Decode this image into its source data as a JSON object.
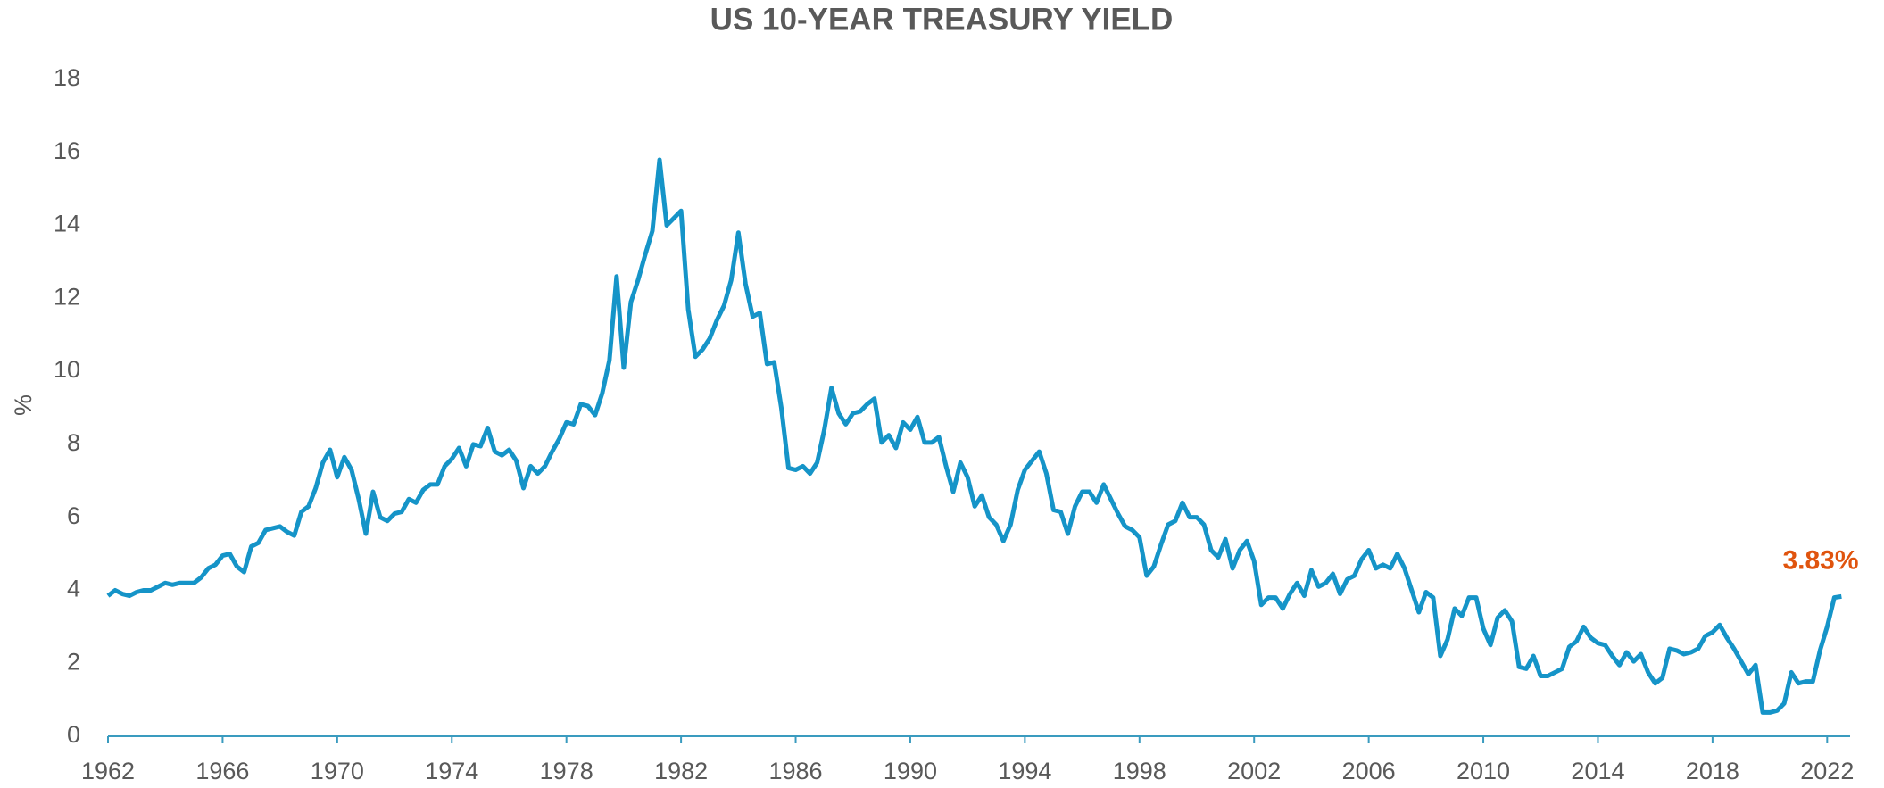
{
  "chart_data": {
    "type": "line",
    "title": "US 10-YEAR TREASURY YIELD",
    "y_label": "%",
    "x": [
      1962,
      1962.25,
      1962.5,
      1962.75,
      1963,
      1963.25,
      1963.5,
      1963.75,
      1964,
      1964.25,
      1964.5,
      1964.75,
      1965,
      1965.25,
      1965.5,
      1965.75,
      1966,
      1966.25,
      1966.5,
      1966.75,
      1967,
      1967.25,
      1967.5,
      1967.75,
      1968,
      1968.25,
      1968.5,
      1968.75,
      1969,
      1969.25,
      1969.5,
      1969.75,
      1970,
      1970.25,
      1970.5,
      1970.75,
      1971,
      1971.25,
      1971.5,
      1971.75,
      1972,
      1972.25,
      1972.5,
      1972.75,
      1973,
      1973.25,
      1973.5,
      1973.75,
      1974,
      1974.25,
      1974.5,
      1974.75,
      1975,
      1975.25,
      1975.5,
      1975.75,
      1976,
      1976.25,
      1976.5,
      1976.75,
      1977,
      1977.25,
      1977.5,
      1977.75,
      1978,
      1978.25,
      1978.5,
      1978.75,
      1979,
      1979.25,
      1979.5,
      1979.75,
      1980,
      1980.25,
      1980.5,
      1980.75,
      1981,
      1981.25,
      1981.5,
      1981.75,
      1982,
      1982.25,
      1982.5,
      1982.75,
      1983,
      1983.25,
      1983.5,
      1983.75,
      1984,
      1984.25,
      1984.5,
      1984.75,
      1985,
      1985.25,
      1985.5,
      1985.75,
      1986,
      1986.25,
      1986.5,
      1986.75,
      1987,
      1987.25,
      1987.5,
      1987.75,
      1988,
      1988.25,
      1988.5,
      1988.75,
      1989,
      1989.25,
      1989.5,
      1989.75,
      1990,
      1990.25,
      1990.5,
      1990.75,
      1991,
      1991.25,
      1991.5,
      1991.75,
      1992,
      1992.25,
      1992.5,
      1992.75,
      1993,
      1993.25,
      1993.5,
      1993.75,
      1994,
      1994.25,
      1994.5,
      1994.75,
      1995,
      1995.25,
      1995.5,
      1995.75,
      1996,
      1996.25,
      1996.5,
      1996.75,
      1997,
      1997.25,
      1997.5,
      1997.75,
      1998,
      1998.25,
      1998.5,
      1998.75,
      1999,
      1999.25,
      1999.5,
      1999.75,
      2000,
      2000.25,
      2000.5,
      2000.75,
      2001,
      2001.25,
      2001.5,
      2001.75,
      2002,
      2002.25,
      2002.5,
      2002.75,
      2003,
      2003.25,
      2003.5,
      2003.75,
      2004,
      2004.25,
      2004.5,
      2004.75,
      2005,
      2005.25,
      2005.5,
      2005.75,
      2006,
      2006.25,
      2006.5,
      2006.75,
      2007,
      2007.25,
      2007.5,
      2007.75,
      2008,
      2008.25,
      2008.5,
      2008.75,
      2009,
      2009.25,
      2009.5,
      2009.75,
      2010,
      2010.25,
      2010.5,
      2010.75,
      2011,
      2011.25,
      2011.5,
      2011.75,
      2012,
      2012.25,
      2012.5,
      2012.75,
      2013,
      2013.25,
      2013.5,
      2013.75,
      2014,
      2014.25,
      2014.5,
      2014.75,
      2015,
      2015.25,
      2015.5,
      2015.75,
      2016,
      2016.25,
      2016.5,
      2016.75,
      2017,
      2017.25,
      2017.5,
      2017.75,
      2018,
      2018.25,
      2018.5,
      2018.75,
      2019,
      2019.25,
      2019.5,
      2019.75,
      2020,
      2020.25,
      2020.5,
      2020.75,
      2021,
      2021.25,
      2021.5,
      2021.75,
      2022,
      2022.25,
      2022.5
    ],
    "series": [
      {
        "name": "US 10-Year Treasury Yield",
        "color": "#1594c8",
        "values": [
          3.85,
          4.0,
          3.9,
          3.85,
          3.95,
          4.0,
          4.0,
          4.1,
          4.2,
          4.15,
          4.2,
          4.2,
          4.2,
          4.35,
          4.6,
          4.7,
          4.95,
          5.0,
          4.65,
          4.5,
          5.2,
          5.3,
          5.65,
          5.7,
          5.75,
          5.6,
          5.5,
          6.15,
          6.3,
          6.8,
          7.5,
          7.85,
          7.1,
          7.65,
          7.3,
          6.5,
          5.55,
          6.7,
          6.0,
          5.9,
          6.1,
          6.15,
          6.5,
          6.4,
          6.75,
          6.9,
          6.9,
          7.4,
          7.6,
          7.9,
          7.4,
          8.0,
          7.95,
          8.45,
          7.8,
          7.7,
          7.85,
          7.55,
          6.8,
          7.4,
          7.2,
          7.4,
          7.8,
          8.15,
          8.6,
          8.55,
          9.1,
          9.05,
          8.8,
          9.4,
          10.3,
          12.6,
          10.1,
          11.9,
          12.5,
          13.2,
          13.85,
          15.8,
          14.0,
          14.2,
          14.4,
          11.7,
          10.4,
          10.6,
          10.9,
          11.4,
          11.8,
          12.5,
          13.8,
          12.4,
          11.5,
          11.6,
          10.2,
          10.25,
          9.0,
          7.35,
          7.3,
          7.4,
          7.2,
          7.5,
          8.4,
          9.55,
          8.85,
          8.55,
          8.85,
          8.9,
          9.1,
          9.25,
          8.05,
          8.25,
          7.9,
          8.6,
          8.4,
          8.75,
          8.05,
          8.05,
          8.2,
          7.4,
          6.7,
          7.5,
          7.1,
          6.3,
          6.6,
          6.0,
          5.8,
          5.35,
          5.8,
          6.75,
          7.3,
          7.55,
          7.8,
          7.2,
          6.2,
          6.15,
          5.55,
          6.3,
          6.7,
          6.7,
          6.4,
          6.9,
          6.5,
          6.1,
          5.75,
          5.65,
          5.45,
          4.4,
          4.65,
          5.25,
          5.8,
          5.9,
          6.4,
          6.0,
          6.0,
          5.8,
          5.1,
          4.9,
          5.4,
          4.6,
          5.1,
          5.35,
          4.8,
          3.6,
          3.8,
          3.8,
          3.5,
          3.9,
          4.2,
          3.85,
          4.55,
          4.1,
          4.2,
          4.45,
          3.9,
          4.3,
          4.4,
          4.85,
          5.1,
          4.6,
          4.7,
          4.6,
          5.0,
          4.6,
          4.0,
          3.4,
          3.95,
          3.8,
          2.2,
          2.65,
          3.5,
          3.3,
          3.8,
          3.8,
          2.95,
          2.5,
          3.25,
          3.45,
          3.15,
          1.9,
          1.85,
          2.2,
          1.65,
          1.65,
          1.75,
          1.85,
          2.45,
          2.6,
          3.0,
          2.7,
          2.55,
          2.5,
          2.2,
          1.95,
          2.3,
          2.05,
          2.25,
          1.75,
          1.45,
          1.6,
          2.4,
          2.35,
          2.25,
          2.3,
          2.4,
          2.75,
          2.85,
          3.05,
          2.7,
          2.4,
          2.05,
          1.7,
          1.95,
          0.65,
          0.65,
          0.7,
          0.9,
          1.75,
          1.45,
          1.5,
          1.5,
          2.35,
          3.0,
          3.8,
          3.83
        ]
      }
    ],
    "annotations": [
      {
        "text": "3.83%",
        "x": 2022.5,
        "y": 3.83
      }
    ],
    "xlim": [
      1962,
      2022.8
    ],
    "xticks": [
      1962,
      1966,
      1970,
      1974,
      1978,
      1982,
      1986,
      1990,
      1994,
      1998,
      2002,
      2006,
      2010,
      2014,
      2018,
      2022
    ],
    "ylim": [
      0,
      18
    ],
    "yticks": [
      0,
      2,
      4,
      6,
      8,
      10,
      12,
      14,
      16,
      18
    ],
    "grid": false
  }
}
